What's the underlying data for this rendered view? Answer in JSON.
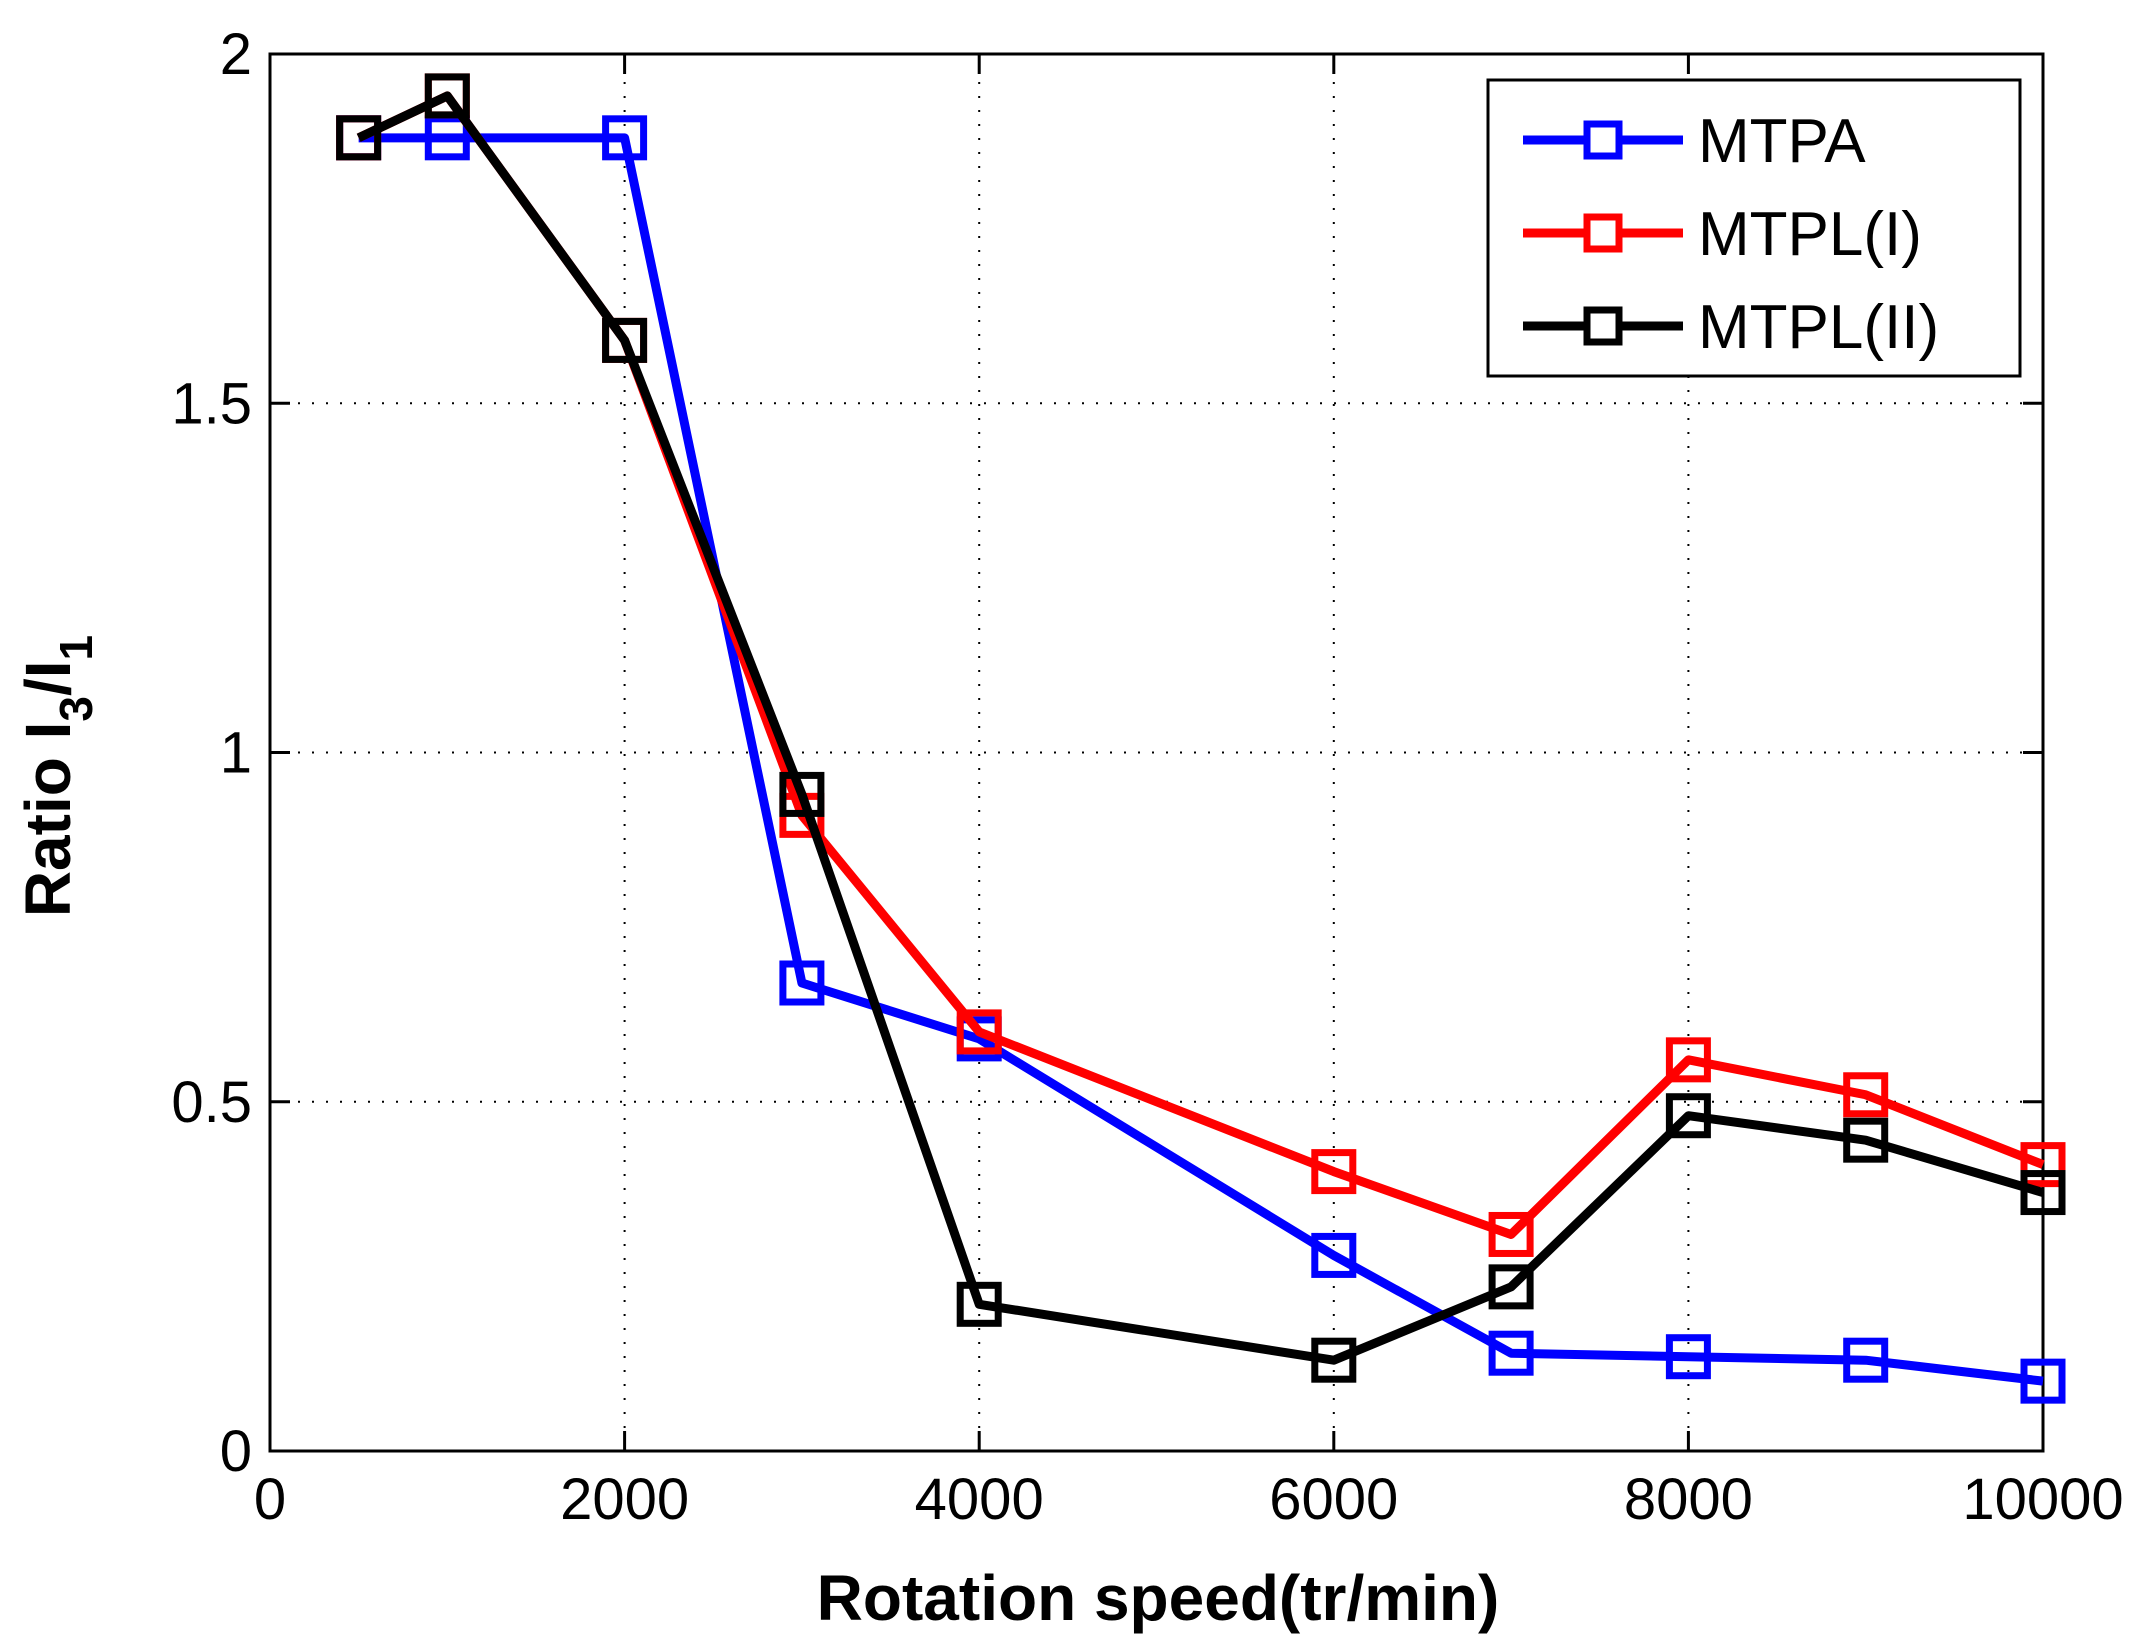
{
  "chart_data": {
    "type": "line",
    "title": "",
    "xlabel": "Rotation speed(tr/min)",
    "ylabel": {
      "main": "Ratio I",
      "sub1": "3",
      "slash": "/I",
      "sub2": "1"
    },
    "xlim": [
      0,
      10000
    ],
    "ylim": [
      0,
      2
    ],
    "xticks": [
      0,
      2000,
      4000,
      6000,
      8000,
      10000
    ],
    "yticks": [
      0,
      0.5,
      1,
      1.5,
      2
    ],
    "xtick_labels": [
      "0",
      "2000",
      "4000",
      "6000",
      "8000",
      "10000"
    ],
    "ytick_labels": [
      "0",
      "0.5",
      "1",
      "1.5",
      "2"
    ],
    "grid": true,
    "legend_position": "top-right",
    "series": [
      {
        "name": "MTPA",
        "color": "#0000ff",
        "marker": "square",
        "x": [
          500,
          1000,
          2000,
          3000,
          4000,
          6000,
          7000,
          8000,
          9000,
          10000
        ],
        "y": [
          1.88,
          1.88,
          1.88,
          0.67,
          0.59,
          0.28,
          0.14,
          0.135,
          0.13,
          0.1
        ]
      },
      {
        "name": "MTPL(I)",
        "color": "#ff0000",
        "marker": "square",
        "x": [
          500,
          1000,
          2000,
          3000,
          4000,
          6000,
          7000,
          8000,
          9000,
          10000
        ],
        "y": [
          1.88,
          1.94,
          1.59,
          0.91,
          0.6,
          0.4,
          0.31,
          0.56,
          0.51,
          0.41
        ]
      },
      {
        "name": "MTPL(II)",
        "color": "#000000",
        "marker": "square",
        "x": [
          500,
          1000,
          2000,
          3000,
          4000,
          6000,
          7000,
          8000,
          9000,
          10000
        ],
        "y": [
          1.88,
          1.94,
          1.59,
          0.94,
          0.21,
          0.13,
          0.235,
          0.48,
          0.445,
          0.37
        ]
      }
    ]
  }
}
